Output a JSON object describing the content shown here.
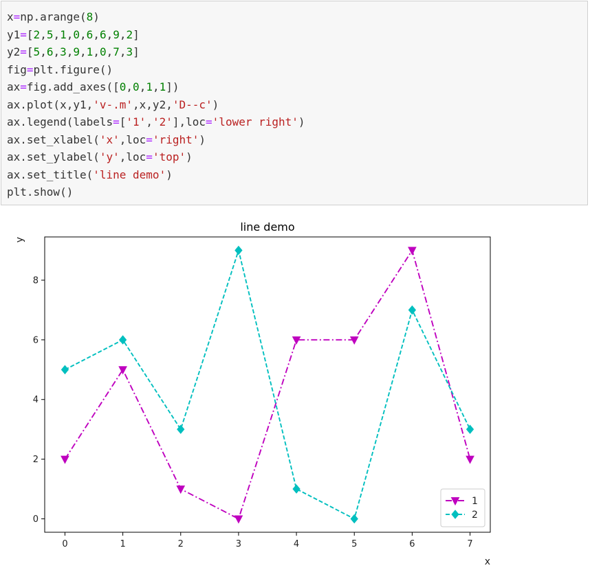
{
  "code_cell": {
    "lines": [
      [
        {
          "t": "x"
        },
        {
          "t": "=",
          "c": "op"
        },
        {
          "t": "np.arange("
        },
        {
          "t": "8",
          "c": "num"
        },
        {
          "t": ")"
        }
      ],
      [
        {
          "t": "y1"
        },
        {
          "t": "=",
          "c": "op"
        },
        {
          "t": "["
        },
        {
          "t": "2",
          "c": "num"
        },
        {
          "t": ","
        },
        {
          "t": "5",
          "c": "num"
        },
        {
          "t": ","
        },
        {
          "t": "1",
          "c": "num"
        },
        {
          "t": ","
        },
        {
          "t": "0",
          "c": "num"
        },
        {
          "t": ","
        },
        {
          "t": "6",
          "c": "num"
        },
        {
          "t": ","
        },
        {
          "t": "6",
          "c": "num"
        },
        {
          "t": ","
        },
        {
          "t": "9",
          "c": "num"
        },
        {
          "t": ","
        },
        {
          "t": "2",
          "c": "num"
        },
        {
          "t": "]"
        }
      ],
      [
        {
          "t": "y2"
        },
        {
          "t": "=",
          "c": "op"
        },
        {
          "t": "["
        },
        {
          "t": "5",
          "c": "num"
        },
        {
          "t": ","
        },
        {
          "t": "6",
          "c": "num"
        },
        {
          "t": ","
        },
        {
          "t": "3",
          "c": "num"
        },
        {
          "t": ","
        },
        {
          "t": "9",
          "c": "num"
        },
        {
          "t": ","
        },
        {
          "t": "1",
          "c": "num"
        },
        {
          "t": ","
        },
        {
          "t": "0",
          "c": "num"
        },
        {
          "t": ","
        },
        {
          "t": "7",
          "c": "num"
        },
        {
          "t": ","
        },
        {
          "t": "3",
          "c": "num"
        },
        {
          "t": "]"
        }
      ],
      [
        {
          "t": "fig"
        },
        {
          "t": "=",
          "c": "op"
        },
        {
          "t": "plt.figure()"
        }
      ],
      [
        {
          "t": "ax"
        },
        {
          "t": "=",
          "c": "op"
        },
        {
          "t": "fig.add_axes(["
        },
        {
          "t": "0",
          "c": "num"
        },
        {
          "t": ","
        },
        {
          "t": "0",
          "c": "num"
        },
        {
          "t": ","
        },
        {
          "t": "1",
          "c": "num"
        },
        {
          "t": ","
        },
        {
          "t": "1",
          "c": "num"
        },
        {
          "t": "])"
        }
      ],
      [
        {
          "t": "ax.plot(x,y1,"
        },
        {
          "t": "'v-.m'",
          "c": "str"
        },
        {
          "t": ",x,y2,"
        },
        {
          "t": "'D--c'",
          "c": "str"
        },
        {
          "t": ")"
        }
      ],
      [
        {
          "t": "ax.legend(labels"
        },
        {
          "t": "=",
          "c": "op"
        },
        {
          "t": "["
        },
        {
          "t": "'1'",
          "c": "str"
        },
        {
          "t": ","
        },
        {
          "t": "'2'",
          "c": "str"
        },
        {
          "t": "],loc"
        },
        {
          "t": "=",
          "c": "op"
        },
        {
          "t": "'lower right'",
          "c": "str"
        },
        {
          "t": ")"
        }
      ],
      [
        {
          "t": "ax.set_xlabel("
        },
        {
          "t": "'x'",
          "c": "str"
        },
        {
          "t": ",loc"
        },
        {
          "t": "=",
          "c": "op"
        },
        {
          "t": "'right'",
          "c": "str"
        },
        {
          "t": ")"
        }
      ],
      [
        {
          "t": "ax.set_ylabel("
        },
        {
          "t": "'y'",
          "c": "str"
        },
        {
          "t": ",loc"
        },
        {
          "t": "=",
          "c": "op"
        },
        {
          "t": "'top'",
          "c": "str"
        },
        {
          "t": ")"
        }
      ],
      [
        {
          "t": "ax.set_title("
        },
        {
          "t": "'line demo'",
          "c": "str"
        },
        {
          "t": ")"
        }
      ],
      [
        {
          "t": "plt.show()"
        }
      ]
    ]
  },
  "chart_data": {
    "type": "line",
    "title": "line demo",
    "xlabel": "x",
    "ylabel": "y",
    "x": [
      0,
      1,
      2,
      3,
      4,
      5,
      6,
      7
    ],
    "xlim": [
      -0.35,
      7.35
    ],
    "ylim": [
      -0.45,
      9.45
    ],
    "xticks": [
      0,
      1,
      2,
      3,
      4,
      5,
      6,
      7
    ],
    "yticks": [
      0,
      2,
      4,
      6,
      8
    ],
    "grid": false,
    "legend_position": "lower right",
    "series": [
      {
        "name": "1",
        "values": [
          2,
          5,
          1,
          0,
          6,
          6,
          9,
          2
        ],
        "color": "#bf00bf",
        "marker": "triangle-down",
        "linestyle": "dash-dot"
      },
      {
        "name": "2",
        "values": [
          5,
          6,
          3,
          9,
          1,
          0,
          7,
          3
        ],
        "color": "#00bfbf",
        "marker": "diamond",
        "linestyle": "dashed"
      }
    ]
  }
}
